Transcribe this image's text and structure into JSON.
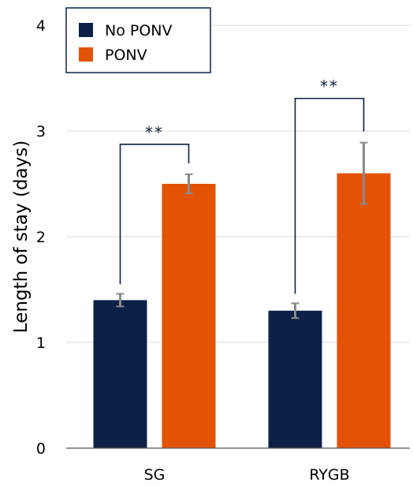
{
  "chart_data": {
    "type": "bar",
    "title": "",
    "xlabel": "",
    "ylabel": "Length of stay (days)",
    "ylim": [
      0,
      4
    ],
    "yticks": [
      "0",
      "1",
      "2",
      "3",
      "4"
    ],
    "categories": [
      "SG",
      "RYGB"
    ],
    "series": [
      {
        "name": "No PONV",
        "color": "#0d2147",
        "values": [
          1.4,
          1.3
        ],
        "error": [
          0.06,
          0.07
        ]
      },
      {
        "name": "PONV",
        "color": "#e35306",
        "values": [
          2.5,
          2.6
        ],
        "error": [
          0.09,
          0.29
        ]
      }
    ],
    "significance": [
      {
        "label": "**",
        "category": "SG"
      },
      {
        "label": "**",
        "category": "RYGB"
      }
    ],
    "grid": true,
    "legend": "top-left",
    "error_bar_color": "#8a8a8a",
    "bracket_color": "#0f1f3d"
  }
}
